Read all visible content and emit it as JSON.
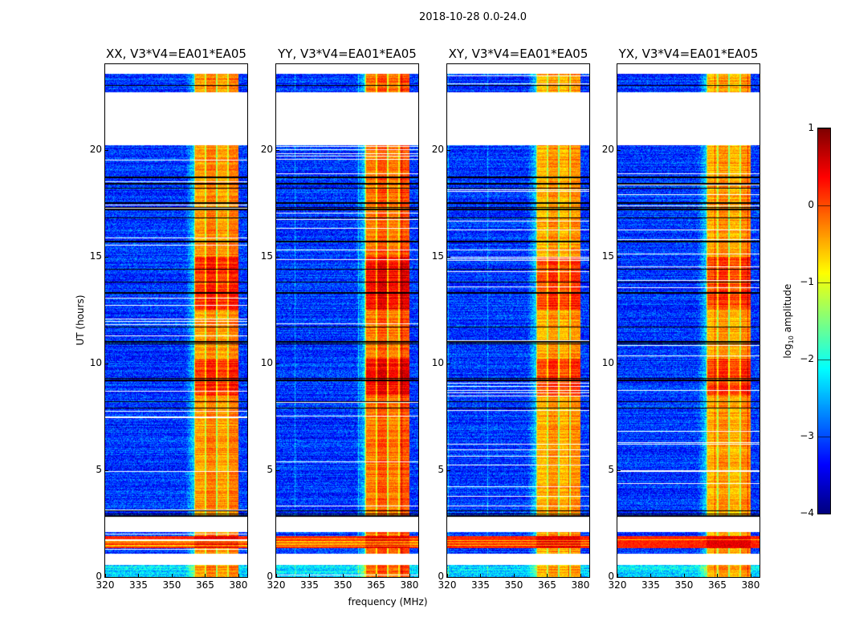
{
  "chart_data": {
    "type": "heatmap",
    "title": "2018-10-28 0.0-24.0",
    "xlabel": "frequency (MHz)",
    "ylabel": "UT (hours)",
    "xlim": [
      320,
      384
    ],
    "ylim": [
      0,
      24
    ],
    "x_ticks": [
      "320",
      "335",
      "350",
      "365",
      "380"
    ],
    "x_tick_values": [
      320,
      335,
      350,
      365,
      380
    ],
    "y_ticks": [
      "0",
      "5",
      "10",
      "15",
      "20"
    ],
    "y_tick_values": [
      0,
      5,
      10,
      15,
      20
    ],
    "panels": [
      {
        "title": "XX, V3*V4=EA01*EA05",
        "band_level": -0.4
      },
      {
        "title": "YY, V3*V4=EA01*EA05",
        "band_level": -0.2
      },
      {
        "title": "XY, V3*V4=EA01*EA05",
        "band_level": -0.5
      },
      {
        "title": "YX, V3*V4=EA01*EA05",
        "band_level": -0.5
      }
    ],
    "rfi_band_mhz": [
      360,
      380
    ],
    "background_level": -3.1,
    "missing_time_ranges_hours": [
      [
        0.55,
        1.1
      ],
      [
        2.1,
        2.8
      ],
      [
        20.2,
        22.7
      ],
      [
        23.55,
        24.0
      ]
    ],
    "strong_time_ranges_hours": [
      [
        1.35,
        1.9
      ]
    ],
    "bright_time_ranges_hours": [
      [
        8.5,
        10.2
      ],
      [
        12.5,
        15.0
      ]
    ],
    "flagged_times_hours": [
      2.85,
      2.95,
      3.1,
      7.9,
      8.2,
      9.2,
      9.3,
      10.9,
      11.0,
      11.7,
      13.3,
      13.8,
      14.4,
      15.7,
      16.8,
      17.2,
      17.3,
      17.5,
      18.2,
      18.4,
      18.7,
      23.0
    ],
    "colorbar": {
      "label": "log10 amplitude",
      "label_base": "log",
      "label_sub": "10",
      "label_rest": " amplitude",
      "range": [
        -4,
        1
      ],
      "ticks": [
        "1",
        "0",
        "−1",
        "−2",
        "−3",
        "−4"
      ],
      "tick_values": [
        1,
        0,
        -1,
        -2,
        -3,
        -4
      ],
      "colormap": "jet"
    }
  }
}
